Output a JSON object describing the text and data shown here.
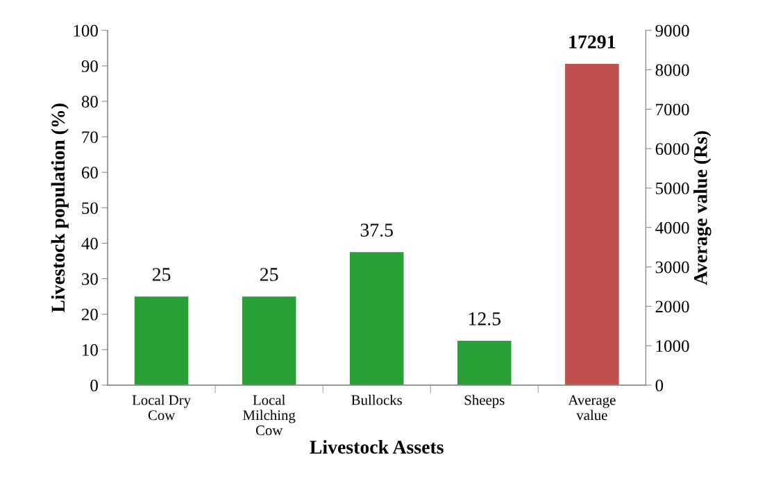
{
  "chart_data": {
    "type": "bar",
    "xlabel": "Livestock Assets",
    "ylabel": "Livestock population (%)",
    "y2label": "Average value (Rs)",
    "categories": [
      "Local Dry\nCow",
      "Local\nMilching\nCow",
      "Bullocks",
      "Sheeps",
      "Average\nvalue"
    ],
    "series": [
      {
        "color": "#28a035",
        "values": [
          25,
          25,
          37.5,
          12.5,
          null
        ],
        "value_labels": [
          "25",
          "25",
          "37.5",
          "12.5",
          null
        ]
      },
      {
        "color": "#c0504d",
        "axis": "y2",
        "values": [
          null,
          null,
          null,
          null,
          8150
        ]
      }
    ],
    "ylim": [
      0,
      100
    ],
    "yticks": [
      0,
      10,
      20,
      30,
      40,
      50,
      60,
      70,
      80,
      90,
      100
    ],
    "y2lim": [
      0,
      9000
    ],
    "y2ticks": [
      0,
      1000,
      2000,
      3000,
      4000,
      5000,
      6000,
      7000,
      8000,
      9000
    ],
    "annotations": [
      "17291"
    ],
    "grid": false,
    "legend": false
  }
}
